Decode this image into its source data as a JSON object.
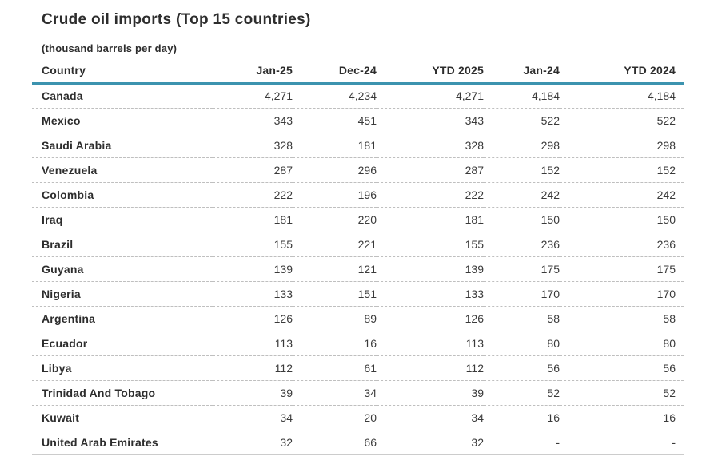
{
  "header": {
    "title": "Crude oil imports (Top 15 countries)",
    "subtitle": "(thousand barrels per day)"
  },
  "colors": {
    "accent_line": "#3C93AF",
    "text": "#2d2d2d",
    "row_divider": "#bfbfbf",
    "bottom_border": "#cccccc"
  },
  "chart_data": {
    "type": "table",
    "title": "Crude oil imports (Top 15 countries)",
    "unit": "thousand barrels per day",
    "columns": [
      "Country",
      "Jan-25",
      "Dec-24",
      "YTD 2025",
      "Jan-24",
      "YTD 2024"
    ],
    "rows": [
      [
        "Canada",
        "4,271",
        "4,234",
        "4,271",
        "4,184",
        "4,184"
      ],
      [
        "Mexico",
        "343",
        "451",
        "343",
        "522",
        "522"
      ],
      [
        "Saudi Arabia",
        "328",
        "181",
        "328",
        "298",
        "298"
      ],
      [
        "Venezuela",
        "287",
        "296",
        "287",
        "152",
        "152"
      ],
      [
        "Colombia",
        "222",
        "196",
        "222",
        "242",
        "242"
      ],
      [
        "Iraq",
        "181",
        "220",
        "181",
        "150",
        "150"
      ],
      [
        "Brazil",
        "155",
        "221",
        "155",
        "236",
        "236"
      ],
      [
        "Guyana",
        "139",
        "121",
        "139",
        "175",
        "175"
      ],
      [
        "Nigeria",
        "133",
        "151",
        "133",
        "170",
        "170"
      ],
      [
        "Argentina",
        "126",
        "89",
        "126",
        "58",
        "58"
      ],
      [
        "Ecuador",
        "113",
        "16",
        "113",
        "80",
        "80"
      ],
      [
        "Libya",
        "112",
        "61",
        "112",
        "56",
        "56"
      ],
      [
        "Trinidad And Tobago",
        "39",
        "34",
        "39",
        "52",
        "52"
      ],
      [
        "Kuwait",
        "34",
        "20",
        "34",
        "16",
        "16"
      ],
      [
        "United Arab Emirates",
        "32",
        "66",
        "32",
        "-",
        "-"
      ]
    ]
  }
}
